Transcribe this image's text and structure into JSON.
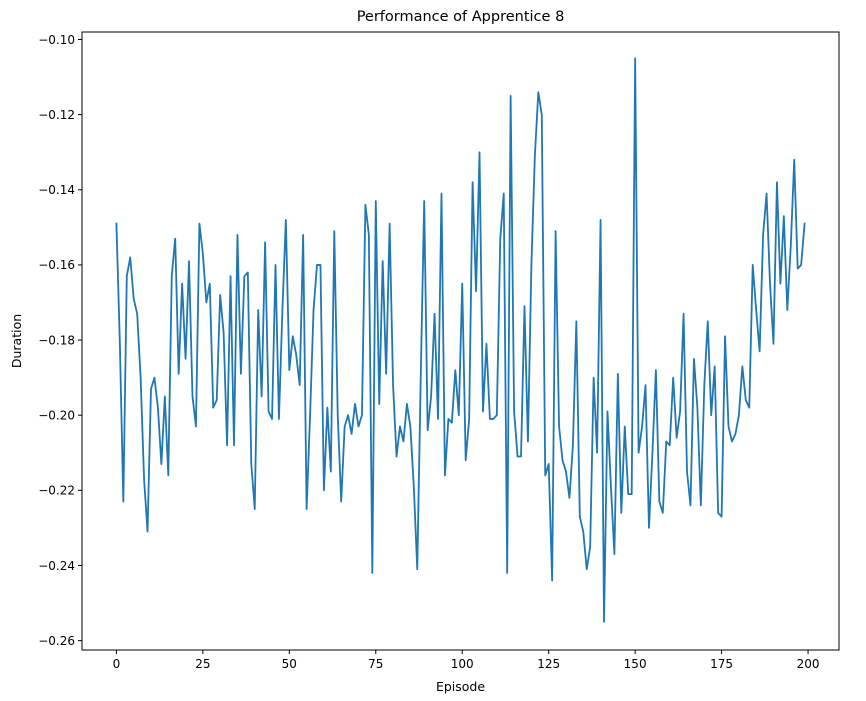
{
  "chart_data": {
    "type": "line",
    "title": "Performance of Apprentice 8",
    "xlabel": "Episode",
    "ylabel": "Duration",
    "xlim": [
      -9.95,
      208.95
    ],
    "ylim": [
      -0.2625,
      -0.098
    ],
    "xticks": [
      0,
      25,
      50,
      75,
      100,
      125,
      150,
      175,
      200
    ],
    "yticks": [
      -0.26,
      -0.24,
      -0.22,
      -0.2,
      -0.18,
      -0.16,
      -0.14,
      -0.12,
      -0.1
    ],
    "ytick_labels": [
      "−0.26",
      "−0.24",
      "−0.22",
      "−0.20",
      "−0.18",
      "−0.16",
      "−0.14",
      "−0.12",
      "−0.10"
    ],
    "grid": false,
    "legend": "none",
    "series": [
      {
        "color": "#1f77b4",
        "x_start": 0,
        "x_step": 1,
        "values": [
          -0.149,
          -0.181,
          -0.223,
          -0.163,
          -0.158,
          -0.169,
          -0.173,
          -0.19,
          -0.217,
          -0.231,
          -0.193,
          -0.19,
          -0.198,
          -0.213,
          -0.195,
          -0.216,
          -0.163,
          -0.153,
          -0.189,
          -0.165,
          -0.185,
          -0.159,
          -0.195,
          -0.203,
          -0.149,
          -0.157,
          -0.17,
          -0.165,
          -0.198,
          -0.196,
          -0.168,
          -0.178,
          -0.208,
          -0.163,
          -0.208,
          -0.152,
          -0.189,
          -0.163,
          -0.162,
          -0.213,
          -0.225,
          -0.172,
          -0.195,
          -0.154,
          -0.199,
          -0.201,
          -0.16,
          -0.201,
          -0.172,
          -0.148,
          -0.188,
          -0.179,
          -0.184,
          -0.192,
          -0.152,
          -0.225,
          -0.2,
          -0.172,
          -0.16,
          -0.16,
          -0.22,
          -0.198,
          -0.215,
          -0.151,
          -0.2,
          -0.223,
          -0.203,
          -0.2,
          -0.205,
          -0.197,
          -0.203,
          -0.2,
          -0.144,
          -0.152,
          -0.242,
          -0.143,
          -0.197,
          -0.159,
          -0.189,
          -0.149,
          -0.192,
          -0.211,
          -0.203,
          -0.207,
          -0.197,
          -0.203,
          -0.219,
          -0.241,
          -0.19,
          -0.143,
          -0.204,
          -0.195,
          -0.173,
          -0.201,
          -0.141,
          -0.216,
          -0.201,
          -0.202,
          -0.188,
          -0.2,
          -0.165,
          -0.212,
          -0.201,
          -0.138,
          -0.167,
          -0.13,
          -0.199,
          -0.181,
          -0.201,
          -0.201,
          -0.2,
          -0.153,
          -0.141,
          -0.242,
          -0.115,
          -0.199,
          -0.211,
          -0.211,
          -0.171,
          -0.207,
          -0.16,
          -0.131,
          -0.114,
          -0.12,
          -0.216,
          -0.213,
          -0.244,
          -0.151,
          -0.203,
          -0.212,
          -0.215,
          -0.222,
          -0.208,
          -0.175,
          -0.227,
          -0.231,
          -0.241,
          -0.235,
          -0.19,
          -0.21,
          -0.148,
          -0.255,
          -0.199,
          -0.219,
          -0.237,
          -0.189,
          -0.226,
          -0.203,
          -0.221,
          -0.221,
          -0.105,
          -0.21,
          -0.203,
          -0.192,
          -0.23,
          -0.21,
          -0.188,
          -0.223,
          -0.226,
          -0.207,
          -0.208,
          -0.19,
          -0.206,
          -0.199,
          -0.173,
          -0.215,
          -0.224,
          -0.185,
          -0.198,
          -0.224,
          -0.192,
          -0.175,
          -0.2,
          -0.187,
          -0.226,
          -0.227,
          -0.179,
          -0.203,
          -0.207,
          -0.205,
          -0.2,
          -0.187,
          -0.196,
          -0.198,
          -0.16,
          -0.172,
          -0.183,
          -0.152,
          -0.141,
          -0.165,
          -0.181,
          -0.138,
          -0.165,
          -0.147,
          -0.172,
          -0.155,
          -0.132,
          -0.161,
          -0.16,
          -0.149
        ]
      }
    ]
  }
}
